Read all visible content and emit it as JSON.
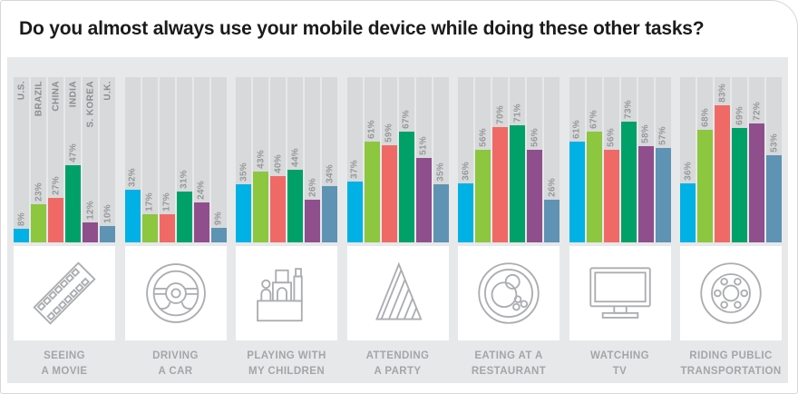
{
  "title": "Do you almost always use your mobile device while doing these other tasks?",
  "colors": {
    "panel_bg": "#e7e8e9",
    "track_bg": "#d8d9da",
    "icon_box_bg": "#ffffff",
    "icon_stroke": "#abadb0",
    "value_label": "#96989b",
    "country_label": "#8a8d90",
    "task_label": "#a3a6a9"
  },
  "chart_data": {
    "type": "bar",
    "ylim": [
      0,
      100
    ],
    "value_suffix": "%",
    "categories": [
      "Seeing a movie",
      "Driving a car",
      "Playing with my children",
      "Attending a party",
      "Eating at a restaurant",
      "Watching TV",
      "Riding public transportation"
    ],
    "series": [
      {
        "name": "U.S.",
        "color": "#00b1e5",
        "values": [
          8,
          32,
          35,
          37,
          36,
          61,
          36
        ]
      },
      {
        "name": "BRAZIL",
        "color": "#8dc63f",
        "values": [
          23,
          17,
          43,
          61,
          56,
          67,
          68
        ]
      },
      {
        "name": "CHINA",
        "color": "#ef6a66",
        "values": [
          27,
          17,
          40,
          59,
          70,
          56,
          83
        ]
      },
      {
        "name": "INDIA",
        "color": "#00a169",
        "values": [
          47,
          31,
          44,
          67,
          71,
          73,
          69
        ]
      },
      {
        "name": "S. KOREA",
        "color": "#8f4f8d",
        "values": [
          12,
          24,
          26,
          51,
          56,
          58,
          72
        ]
      },
      {
        "name": "U.K.",
        "color": "#5e93b4",
        "values": [
          10,
          9,
          34,
          35,
          26,
          57,
          53
        ]
      }
    ]
  },
  "groups": [
    {
      "icon": "movie",
      "label_lines": [
        "SEEING",
        "A MOVIE"
      ]
    },
    {
      "icon": "steering-wheel",
      "label_lines": [
        "DRIVING",
        "A CAR"
      ]
    },
    {
      "icon": "blocks",
      "label_lines": [
        "PLAYING WITH",
        "MY CHILDREN"
      ]
    },
    {
      "icon": "party-hat",
      "label_lines": [
        "ATTENDING",
        "A PARTY"
      ]
    },
    {
      "icon": "plate",
      "label_lines": [
        "EATING AT A",
        "RESTAURANT"
      ]
    },
    {
      "icon": "tv",
      "label_lines": [
        "WATCHING",
        "TV"
      ]
    },
    {
      "icon": "wheel",
      "label_lines": [
        "RIDING PUBLIC",
        "TRANSPORTATION"
      ]
    }
  ]
}
